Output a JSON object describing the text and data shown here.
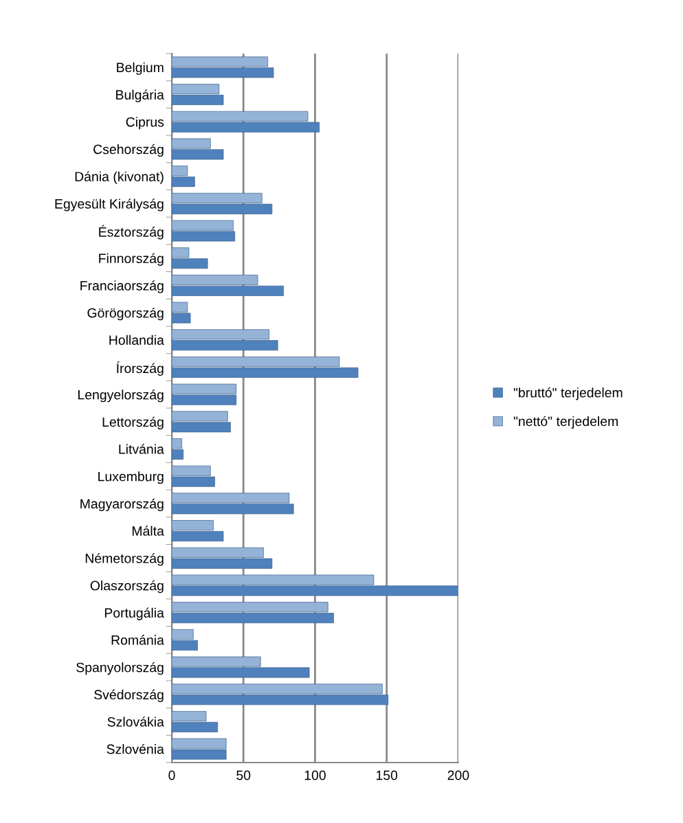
{
  "chart_data": {
    "type": "bar",
    "orientation": "horizontal",
    "categories": [
      "Belgium",
      "Bulgária",
      "Ciprus",
      "Csehország",
      "Dánia (kivonat)",
      "Egyesült Királyság",
      "Észtország",
      "Finnország",
      "Franciaország",
      "Görögország",
      "Hollandia",
      "Írország",
      "Lengyelország",
      "Lettország",
      "Litvánia",
      "Luxemburg",
      "Magyarország",
      "Málta",
      "Németország",
      "Olaszország",
      "Portugália",
      "Románia",
      "Spanyolország",
      "Svédország",
      "Szlovákia",
      "Szlovénia"
    ],
    "series": [
      {
        "name": "\"nettó\" terjedelem",
        "color": "#95b3d7",
        "values": [
          67,
          33,
          95,
          27,
          11,
          63,
          43,
          12,
          60,
          11,
          68,
          117,
          45,
          39,
          7,
          27,
          82,
          29,
          64,
          141,
          109,
          15,
          62,
          147,
          24,
          38
        ]
      },
      {
        "name": "\"bruttó\" terjedelem",
        "color": "#4f81bd",
        "values": [
          71,
          36,
          103,
          36,
          16,
          70,
          44,
          25,
          78,
          13,
          74,
          130,
          45,
          41,
          8,
          30,
          85,
          36,
          70,
          200,
          113,
          18,
          96,
          151,
          32,
          38
        ]
      }
    ],
    "xlim": [
      0,
      200
    ],
    "xticks": [
      0,
      50,
      100,
      150,
      200
    ],
    "grid": "x",
    "legend": "right"
  }
}
